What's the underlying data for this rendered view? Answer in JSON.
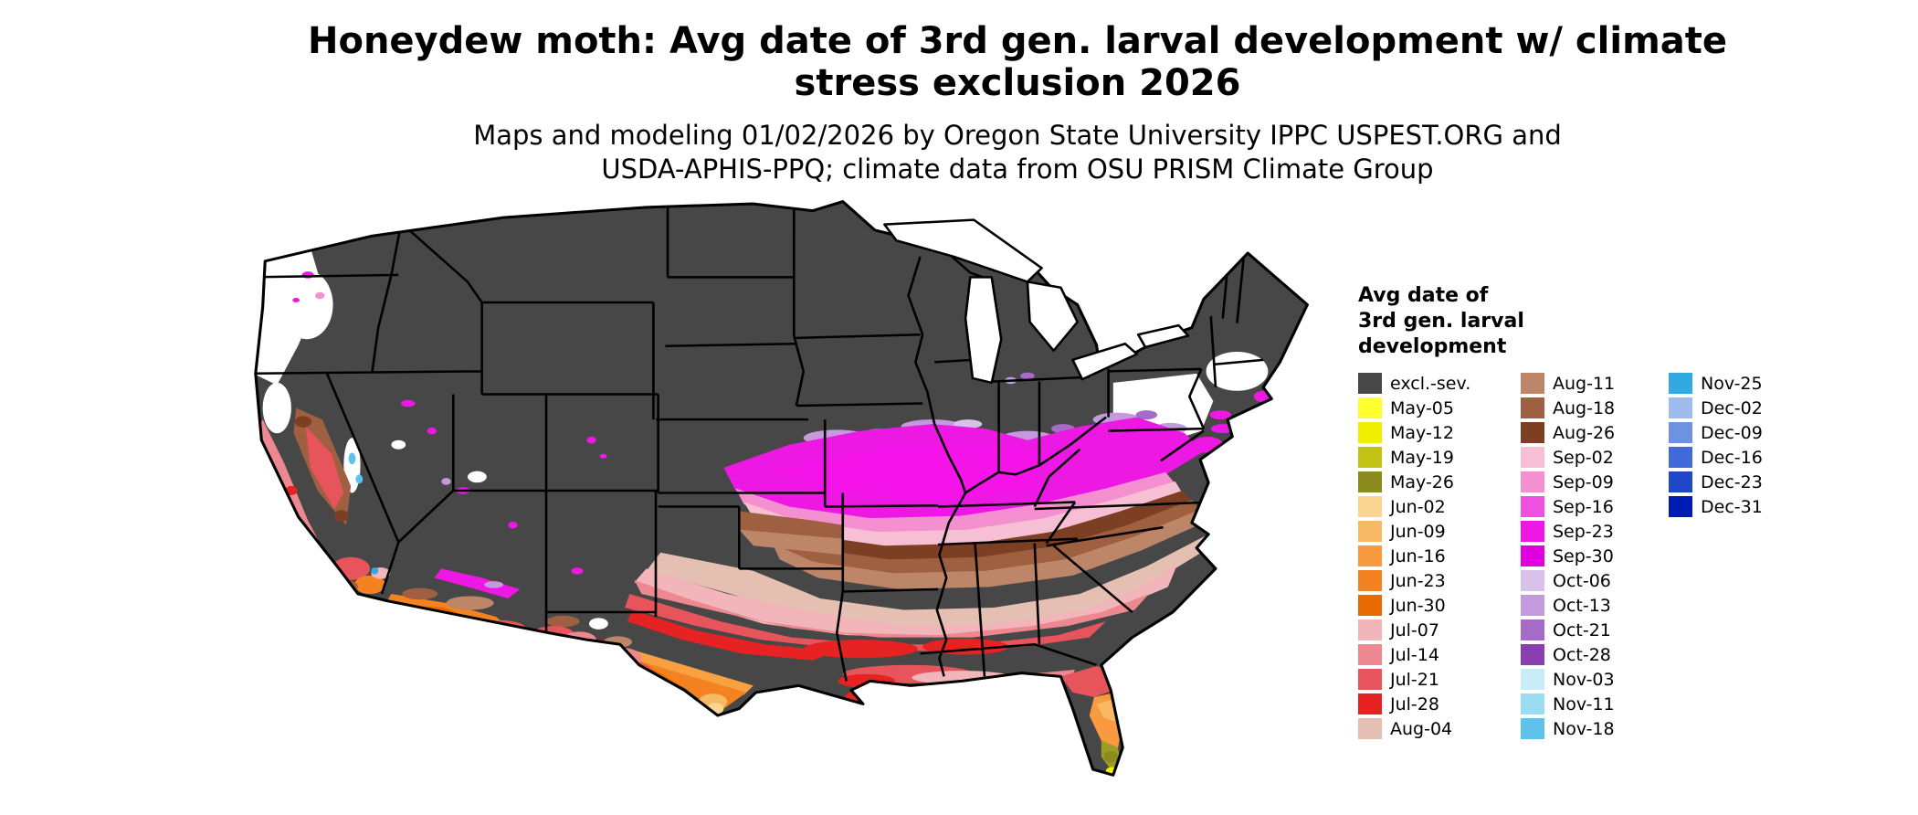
{
  "header": {
    "title_line1": "Honeydew moth: Avg date of 3rd gen. larval development w/ climate",
    "title_line2": "stress exclusion 2026",
    "subtitle_line1": "Maps and modeling 01/02/2026 by Oregon State University IPPC USPEST.ORG and",
    "subtitle_line2": "USDA-APHIS-PPQ; climate data from OSU PRISM Climate Group"
  },
  "map": {
    "area": "Continental United States",
    "type": "choropleth",
    "excluded_label": "excl.-sev.",
    "excluded_color": "#474747"
  },
  "legend": {
    "title_line1": "Avg date of",
    "title_line2": "3rd gen. larval",
    "title_line3": "development",
    "columns": [
      [
        {
          "label": "excl.-sev.",
          "color": "#474747"
        },
        {
          "label": "May-05",
          "color": "#FFFF2E"
        },
        {
          "label": "May-12",
          "color": "#F0F000"
        },
        {
          "label": "May-19",
          "color": "#C2C213"
        },
        {
          "label": "May-26",
          "color": "#8C8C1E"
        },
        {
          "label": "Jun-02",
          "color": "#FAD490"
        },
        {
          "label": "Jun-09",
          "color": "#F8B964"
        },
        {
          "label": "Jun-16",
          "color": "#F99A3E"
        },
        {
          "label": "Jun-23",
          "color": "#F58220"
        },
        {
          "label": "Jun-30",
          "color": "#E96B00"
        },
        {
          "label": "Jul-07",
          "color": "#F2B6BA"
        },
        {
          "label": "Jul-14",
          "color": "#EE8890"
        },
        {
          "label": "Jul-21",
          "color": "#E8545C"
        },
        {
          "label": "Jul-28",
          "color": "#E62222"
        },
        {
          "label": "Aug-04",
          "color": "#E4BFB2"
        }
      ],
      [
        {
          "label": "Aug-11",
          "color": "#BE8668"
        },
        {
          "label": "Aug-18",
          "color": "#9E6040"
        },
        {
          "label": "Aug-26",
          "color": "#7C3F24"
        },
        {
          "label": "Sep-02",
          "color": "#F6BFD4"
        },
        {
          "label": "Sep-09",
          "color": "#F48FD0"
        },
        {
          "label": "Sep-16",
          "color": "#F050E0"
        },
        {
          "label": "Sep-23",
          "color": "#EE18E4"
        },
        {
          "label": "Sep-30",
          "color": "#E000E0"
        },
        {
          "label": "Oct-06",
          "color": "#D9C2EA"
        },
        {
          "label": "Oct-13",
          "color": "#C39BDC"
        },
        {
          "label": "Oct-21",
          "color": "#A66BC6"
        },
        {
          "label": "Oct-28",
          "color": "#8A3FB0"
        },
        {
          "label": "Nov-03",
          "color": "#C9ECF8"
        },
        {
          "label": "Nov-11",
          "color": "#9ADCF2"
        },
        {
          "label": "Nov-18",
          "color": "#5FC2EA"
        }
      ],
      [
        {
          "label": "Nov-25",
          "color": "#30AAE0"
        },
        {
          "label": "Dec-02",
          "color": "#9FBCEE"
        },
        {
          "label": "Dec-09",
          "color": "#6D92E2"
        },
        {
          "label": "Dec-16",
          "color": "#4169D8"
        },
        {
          "label": "Dec-23",
          "color": "#1E46C8"
        },
        {
          "label": "Dec-31",
          "color": "#001CB4"
        }
      ]
    ]
  }
}
